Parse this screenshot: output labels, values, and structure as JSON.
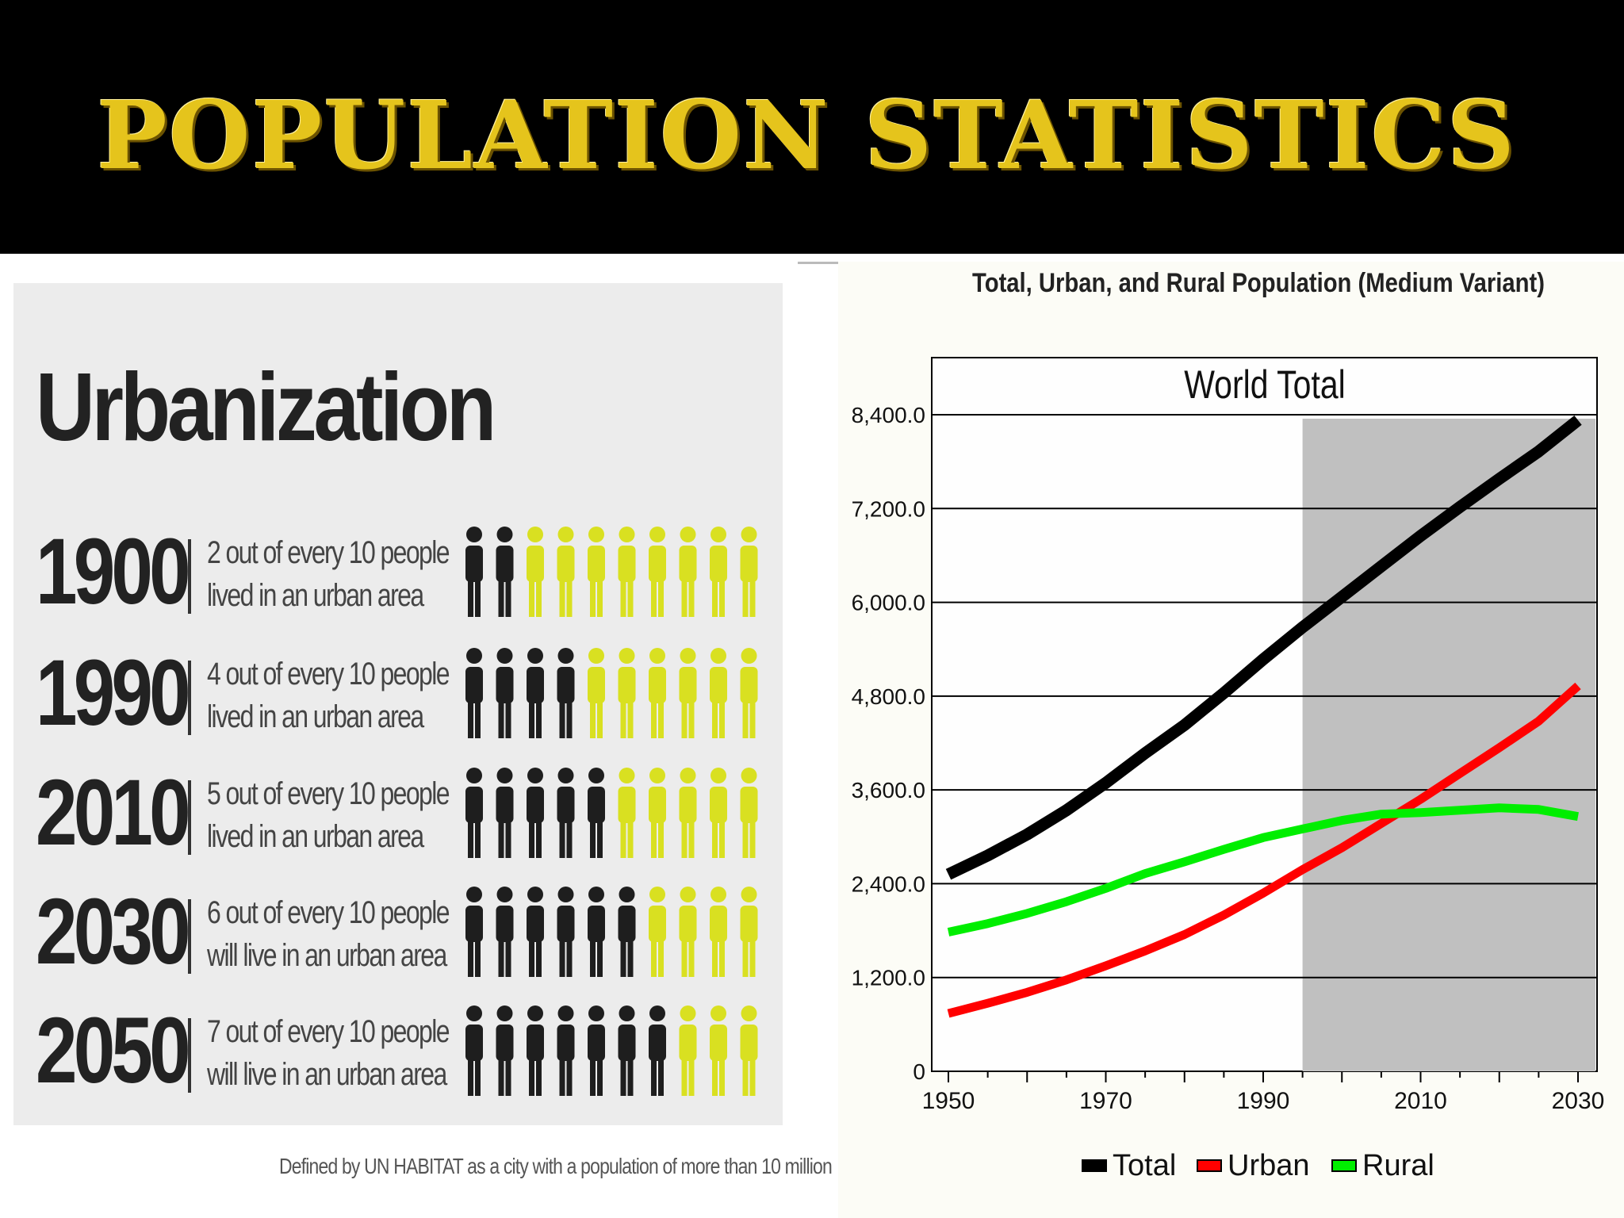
{
  "slide": {
    "title": "Population Statistics"
  },
  "infographic": {
    "heading": "Urbanization",
    "rows": [
      {
        "year": "1900",
        "line1": "2 out of every 10 people",
        "line2": "lived in an urban area",
        "urban_count": 2,
        "total": 10
      },
      {
        "year": "1990",
        "line1": "4 out of every 10 people",
        "line2": "lived in an urban area",
        "urban_count": 4,
        "total": 10
      },
      {
        "year": "2010",
        "line1": "5 out of every 10 people",
        "line2": "lived in an urban area",
        "urban_count": 5,
        "total": 10
      },
      {
        "year": "2030",
        "line1": "6 out of every 10 people",
        "line2": "will live in an urban area",
        "urban_count": 6,
        "total": 10
      },
      {
        "year": "2050",
        "line1": "7 out of every 10 people",
        "line2": "will live in an urban area",
        "urban_count": 7,
        "total": 10
      }
    ],
    "footnote": "Defined by UN HABITAT as a city with a population of more than 10 million",
    "colors": {
      "urban": "#1e1e1e",
      "rural": "#d9e021"
    }
  },
  "chart_data": {
    "type": "line",
    "title": "Total, Urban, and Rural Population (Medium Variant)",
    "subtitle": "World Total",
    "xlabel": "",
    "ylabel": "",
    "xlim": [
      1950,
      2030
    ],
    "ylim": [
      0,
      8400
    ],
    "x_ticks": [
      "1950",
      "1970",
      "1990",
      "2010",
      "2030"
    ],
    "y_ticks": [
      "0",
      "1,200.0",
      "2,400.0",
      "3,600.0",
      "4,800.0",
      "6,000.0",
      "7,200.0",
      "8,400.0"
    ],
    "projection_start": 1995,
    "x": [
      1950,
      1955,
      1960,
      1965,
      1970,
      1975,
      1980,
      1985,
      1990,
      1995,
      2000,
      2005,
      2010,
      2015,
      2020,
      2025,
      2030
    ],
    "series": [
      {
        "name": "Total",
        "color": "#000000",
        "values": [
          2520,
          2760,
          3030,
          3340,
          3690,
          4070,
          4430,
          4840,
          5270,
          5680,
          6070,
          6460,
          6850,
          7220,
          7580,
          7930,
          8330
        ]
      },
      {
        "name": "Urban",
        "color": "#ff0000",
        "values": [
          740,
          870,
          1010,
          1170,
          1350,
          1540,
          1750,
          2000,
          2280,
          2580,
          2860,
          3170,
          3480,
          3810,
          4140,
          4480,
          4930
        ]
      },
      {
        "name": "Rural",
        "color": "#00ee00",
        "values": [
          1780,
          1890,
          2020,
          2170,
          2340,
          2530,
          2680,
          2840,
          2990,
          3100,
          3210,
          3290,
          3310,
          3340,
          3370,
          3350,
          3260
        ]
      }
    ],
    "legend_position": "bottom",
    "grid": true
  }
}
